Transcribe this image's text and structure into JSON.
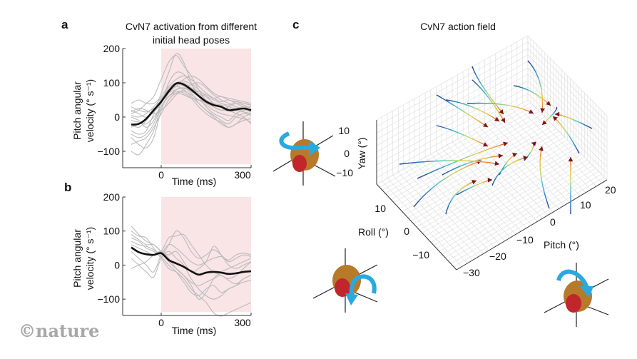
{
  "figure": {
    "watermark": "©nature",
    "colors": {
      "stim_shade": "#f9e4e6",
      "trial_trace": "#bbbbbb",
      "mean_trace": "#111111",
      "arrowhead": "#7a1420",
      "rotation_arrow": "#29a9df",
      "head": "#b67a2a",
      "eye": "#c0262b"
    }
  },
  "chart_data": [
    {
      "panel": "a",
      "type": "line",
      "title": "CvN7 activation from different initial head poses",
      "title_lines": [
        "CvN7 activation from different",
        "initial head poses"
      ],
      "xlabel": "Time (ms)",
      "ylabel_lines": [
        "Pitch angular",
        "velocity (° s⁻¹)"
      ],
      "xlim": [
        -100,
        300
      ],
      "ylim": [
        -150,
        200
      ],
      "xticks": [
        0,
        300
      ],
      "yticks": [
        200,
        100,
        0,
        -100
      ],
      "xtick_labels": [
        "0",
        "300"
      ],
      "ytick_labels": [
        "200",
        "100",
        "0",
        "−100"
      ],
      "shaded_region": {
        "x": [
          0,
          300
        ],
        "label": "activation period"
      },
      "x": [
        -100,
        -75,
        -50,
        -25,
        0,
        25,
        50,
        75,
        100,
        125,
        150,
        175,
        200,
        225,
        250,
        275,
        300
      ],
      "series": [
        {
          "name": "mean",
          "values": [
            -22,
            -20,
            -5,
            20,
            45,
            75,
            98,
            95,
            80,
            62,
            45,
            35,
            30,
            20,
            22,
            25,
            20
          ]
        },
        {
          "name": "trial",
          "values": [
            10,
            20,
            40,
            60,
            110,
            160,
            180,
            150,
            120,
            80,
            50,
            40,
            35,
            30,
            25,
            30,
            20
          ]
        },
        {
          "name": "trial",
          "values": [
            -40,
            -50,
            -40,
            10,
            70,
            130,
            185,
            160,
            100,
            60,
            40,
            30,
            20,
            20,
            25,
            15,
            10
          ]
        },
        {
          "name": "trial",
          "values": [
            40,
            50,
            40,
            40,
            60,
            90,
            110,
            120,
            110,
            90,
            70,
            55,
            45,
            50,
            40,
            30,
            30
          ]
        },
        {
          "name": "trial",
          "values": [
            0,
            -10,
            -30,
            -10,
            40,
            80,
            95,
            90,
            75,
            60,
            30,
            10,
            0,
            -10,
            10,
            20,
            15
          ]
        },
        {
          "name": "trial",
          "values": [
            -60,
            -80,
            -90,
            -60,
            20,
            70,
            90,
            100,
            85,
            70,
            50,
            30,
            20,
            30,
            40,
            35,
            25
          ]
        },
        {
          "name": "trial",
          "values": [
            20,
            10,
            0,
            20,
            50,
            85,
            100,
            105,
            95,
            70,
            60,
            50,
            40,
            35,
            45,
            40,
            35
          ]
        },
        {
          "name": "trial",
          "values": [
            -100,
            -110,
            -80,
            -40,
            30,
            60,
            80,
            85,
            70,
            40,
            20,
            5,
            -10,
            -20,
            0,
            10,
            5
          ]
        },
        {
          "name": "trial",
          "values": [
            5,
            0,
            10,
            30,
            55,
            75,
            90,
            110,
            120,
            110,
            90,
            70,
            60,
            55,
            50,
            45,
            40
          ]
        },
        {
          "name": "trial",
          "values": [
            -20,
            -30,
            -10,
            20,
            50,
            80,
            90,
            80,
            60,
            40,
            20,
            0,
            -20,
            -30,
            -20,
            0,
            10
          ]
        },
        {
          "name": "trial",
          "values": [
            30,
            20,
            15,
            25,
            45,
            70,
            80,
            85,
            80,
            75,
            65,
            55,
            60,
            50,
            45,
            40,
            35
          ]
        },
        {
          "name": "trial",
          "values": [
            -50,
            -60,
            -50,
            -20,
            30,
            60,
            75,
            70,
            55,
            30,
            10,
            -5,
            -15,
            -30,
            -20,
            -10,
            -5
          ]
        },
        {
          "name": "trial",
          "values": [
            -30,
            -20,
            -5,
            15,
            40,
            100,
            130,
            125,
            100,
            80,
            60,
            40,
            30,
            25,
            20,
            15,
            10
          ]
        },
        {
          "name": "trial",
          "values": [
            -10,
            -15,
            -20,
            0,
            30,
            60,
            70,
            65,
            55,
            50,
            45,
            40,
            30,
            20,
            10,
            0,
            -20
          ]
        },
        {
          "name": "trial",
          "values": [
            15,
            25,
            20,
            10,
            20,
            40,
            65,
            80,
            95,
            100,
            85,
            65,
            50,
            40,
            30,
            25,
            20
          ]
        },
        {
          "name": "trial",
          "values": [
            -80,
            -70,
            -60,
            -30,
            10,
            50,
            70,
            75,
            65,
            50,
            35,
            20,
            10,
            5,
            0,
            -5,
            -15
          ]
        }
      ]
    },
    {
      "panel": "b",
      "type": "line",
      "title": "",
      "xlabel": "Time (ms)",
      "ylabel_lines": [
        "Pitch angular",
        "velocity (° s⁻¹)"
      ],
      "xlim": [
        -100,
        300
      ],
      "ylim": [
        -150,
        200
      ],
      "xticks": [
        0,
        300
      ],
      "yticks": [
        200,
        100,
        0,
        -100
      ],
      "xtick_labels": [
        "0",
        "300"
      ],
      "ytick_labels": [
        "200",
        "100",
        "0",
        "−100"
      ],
      "shaded_region": {
        "x": [
          0,
          300
        ],
        "label": "activation period"
      },
      "x": [
        -100,
        -75,
        -50,
        -25,
        0,
        25,
        50,
        75,
        100,
        125,
        150,
        175,
        200,
        225,
        250,
        275,
        300
      ],
      "series": [
        {
          "name": "mean",
          "values": [
            52,
            38,
            32,
            30,
            35,
            15,
            5,
            -5,
            -18,
            -28,
            -22,
            -20,
            -22,
            -26,
            -24,
            -20,
            -18
          ]
        },
        {
          "name": "trial",
          "values": [
            115,
            90,
            70,
            60,
            40,
            10,
            -10,
            -30,
            -60,
            -100,
            -80,
            -40,
            -20,
            -10,
            0,
            10,
            20
          ]
        },
        {
          "name": "trial",
          "values": [
            100,
            85,
            80,
            50,
            30,
            60,
            100,
            80,
            40,
            20,
            30,
            45,
            30,
            10,
            20,
            30,
            25
          ]
        },
        {
          "name": "trial",
          "values": [
            80,
            70,
            50,
            40,
            20,
            -10,
            -20,
            -40,
            -70,
            -90,
            -110,
            -140,
            -150,
            -140,
            -130,
            -120,
            -110
          ]
        },
        {
          "name": "trial",
          "values": [
            40,
            20,
            0,
            -20,
            30,
            60,
            50,
            30,
            10,
            0,
            10,
            20,
            25,
            15,
            30,
            35,
            30
          ]
        },
        {
          "name": "trial",
          "values": [
            -10,
            0,
            10,
            30,
            40,
            20,
            -10,
            -30,
            -50,
            -60,
            -50,
            -40,
            -30,
            -45,
            -55,
            -40,
            -30
          ]
        },
        {
          "name": "trial",
          "values": [
            60,
            50,
            40,
            30,
            40,
            80,
            85,
            90,
            60,
            30,
            0,
            -20,
            -30,
            -40,
            -30,
            -10,
            10
          ]
        },
        {
          "name": "trial",
          "values": [
            20,
            0,
            -20,
            -35,
            20,
            40,
            20,
            0,
            -40,
            -70,
            -90,
            -100,
            -90,
            -70,
            -60,
            -40,
            -30
          ]
        },
        {
          "name": "trial",
          "values": [
            70,
            60,
            55,
            45,
            25,
            0,
            -20,
            -50,
            -80,
            -90,
            -70,
            -60,
            -80,
            -70,
            -60,
            -50,
            -45
          ]
        },
        {
          "name": "trial",
          "values": [
            90,
            75,
            60,
            60,
            40,
            30,
            40,
            10,
            -20,
            -10,
            10,
            55,
            30,
            0,
            -10,
            0,
            10
          ]
        }
      ]
    },
    {
      "panel": "c",
      "type": "line",
      "subtype": "3d-vector-field",
      "title": "CvN7 action field",
      "axes": {
        "pitch": {
          "label": "Pitch (°)",
          "ticks": [
            -30,
            -20,
            -10,
            0,
            10,
            20
          ],
          "tick_labels": [
            "−30",
            "−20",
            "−10",
            "0",
            "10",
            "20"
          ]
        },
        "roll": {
          "label": "Roll (°)",
          "ticks": [
            10,
            0,
            -10
          ],
          "tick_labels": [
            "10",
            "0",
            "−10"
          ]
        },
        "yaw": {
          "label": "Yaw (°)",
          "ticks": [
            10,
            0,
            -10
          ],
          "tick_labels": [
            "10",
            "0",
            "−10"
          ]
        }
      },
      "grid": true,
      "colormap": "parula-like (dark blue start → cyan → yellow → red end)",
      "trajectories_note": "Head-pose trajectories converge toward a common attractor near pitch ≈ 0°, roll ≈ 0°, yaw ≈ 0°; arrowheads mark end points."
    }
  ],
  "icons": {
    "yaw_head": "head-yaw-rotation-icon",
    "roll_head": "head-roll-rotation-icon",
    "pitch_head": "head-pitch-rotation-icon"
  }
}
